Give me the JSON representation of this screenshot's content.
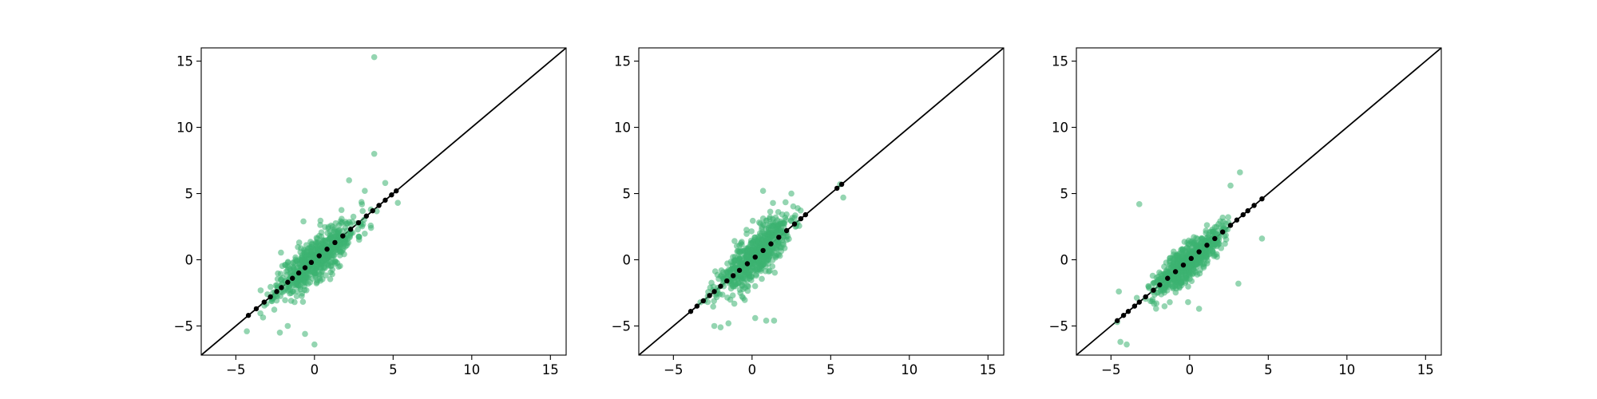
{
  "colors": {
    "points": "#3cb371",
    "identity_line": "#000000",
    "on_line_points": "#000000",
    "axes": "#000000"
  },
  "chart_data": [
    {
      "type": "scatter",
      "title": "",
      "xlabel": "",
      "ylabel": "",
      "xlim": [
        -7.2,
        16.0
      ],
      "ylim": [
        -7.2,
        16.0
      ],
      "xticks": [
        -5,
        0,
        5,
        10,
        15
      ],
      "yticks": [
        -5,
        0,
        5,
        10,
        15
      ],
      "xtick_labels": [
        "−5",
        "0",
        "5",
        "10",
        "15"
      ],
      "ytick_labels": [
        "−5",
        "0",
        "5",
        "10",
        "15"
      ],
      "grid": false,
      "legend": "none",
      "reference_line": "y = x",
      "cloud": {
        "count": 620,
        "center": [
          0.1,
          0.1
        ],
        "sd_x": 1.25,
        "sd_y": 1.4,
        "correlation": 0.8,
        "seed": 11
      },
      "on_line_points": [
        -4.2,
        -3.7,
        -3.2,
        -2.8,
        -2.4,
        -2.1,
        -1.7,
        -1.4,
        -1.0,
        -0.6,
        -0.2,
        0.3,
        0.8,
        1.3,
        1.8,
        2.3,
        2.8,
        3.3,
        3.7,
        4.1,
        4.5,
        4.9,
        5.2
      ],
      "outliers": [
        [
          3.8,
          15.3
        ],
        [
          3.8,
          8.0
        ],
        [
          2.2,
          6.0
        ],
        [
          0.0,
          -6.4
        ],
        [
          -0.6,
          -5.6
        ],
        [
          -2.2,
          -5.5
        ],
        [
          -4.3,
          -5.4
        ],
        [
          -1.7,
          -5.0
        ],
        [
          4.5,
          5.8
        ],
        [
          3.2,
          5.2
        ],
        [
          -0.7,
          2.9
        ],
        [
          5.3,
          4.3
        ]
      ]
    },
    {
      "type": "scatter",
      "title": "",
      "xlabel": "",
      "ylabel": "",
      "xlim": [
        -7.2,
        16.0
      ],
      "ylim": [
        -7.2,
        16.0
      ],
      "xticks": [
        -5,
        0,
        5,
        10,
        15
      ],
      "yticks": [
        -5,
        0,
        5,
        10,
        15
      ],
      "xtick_labels": [
        "−5",
        "0",
        "5",
        "10",
        "15"
      ],
      "ytick_labels": [
        "−5",
        "0",
        "5",
        "10",
        "15"
      ],
      "grid": false,
      "legend": "none",
      "reference_line": "y = x",
      "cloud": {
        "count": 620,
        "center": [
          0.1,
          0.2
        ],
        "sd_x": 1.15,
        "sd_y": 1.45,
        "correlation": 0.78,
        "seed": 23
      },
      "on_line_points": [
        -3.9,
        -3.5,
        -3.1,
        -2.7,
        -2.4,
        -2.0,
        -1.6,
        -1.2,
        -0.8,
        -0.3,
        0.2,
        0.7,
        1.2,
        1.7,
        2.2,
        2.7,
        3.1,
        3.4,
        5.4,
        5.7
      ],
      "outliers": [
        [
          5.6,
          5.7
        ],
        [
          5.8,
          4.7
        ],
        [
          0.7,
          5.2
        ],
        [
          2.5,
          5.0
        ],
        [
          -2.4,
          -5.0
        ],
        [
          0.9,
          -4.6
        ],
        [
          0.2,
          -4.4
        ],
        [
          -1.5,
          -4.8
        ],
        [
          -2.0,
          -5.1
        ],
        [
          1.4,
          -4.6
        ]
      ]
    },
    {
      "type": "scatter",
      "title": "",
      "xlabel": "",
      "ylabel": "",
      "xlim": [
        -7.2,
        16.0
      ],
      "ylim": [
        -7.2,
        16.0
      ],
      "xticks": [
        -5,
        0,
        5,
        10,
        15
      ],
      "yticks": [
        -5,
        0,
        5,
        10,
        15
      ],
      "xtick_labels": [
        "−5",
        "0",
        "5",
        "10",
        "15"
      ],
      "ytick_labels": [
        "−5",
        "0",
        "5",
        "10",
        "15"
      ],
      "grid": false,
      "legend": "none",
      "reference_line": "y = x",
      "cloud": {
        "count": 620,
        "center": [
          -0.1,
          -0.1
        ],
        "sd_x": 1.05,
        "sd_y": 1.2,
        "correlation": 0.82,
        "seed": 37
      },
      "on_line_points": [
        -4.6,
        -4.2,
        -3.9,
        -3.5,
        -3.2,
        -2.8,
        -2.3,
        -1.9,
        -1.4,
        -0.9,
        -0.4,
        0.1,
        0.6,
        1.1,
        1.6,
        2.1,
        2.6,
        3.0,
        3.4,
        3.7,
        4.1,
        4.6
      ],
      "outliers": [
        [
          -3.2,
          4.2
        ],
        [
          3.2,
          6.6
        ],
        [
          2.6,
          5.6
        ],
        [
          4.6,
          1.6
        ],
        [
          3.1,
          -1.8
        ],
        [
          -4.4,
          -6.2
        ],
        [
          -4.0,
          -6.4
        ],
        [
          -4.6,
          -4.7
        ],
        [
          -4.5,
          -2.4
        ],
        [
          0.6,
          -3.7
        ],
        [
          -0.1,
          -3.2
        ]
      ]
    }
  ]
}
